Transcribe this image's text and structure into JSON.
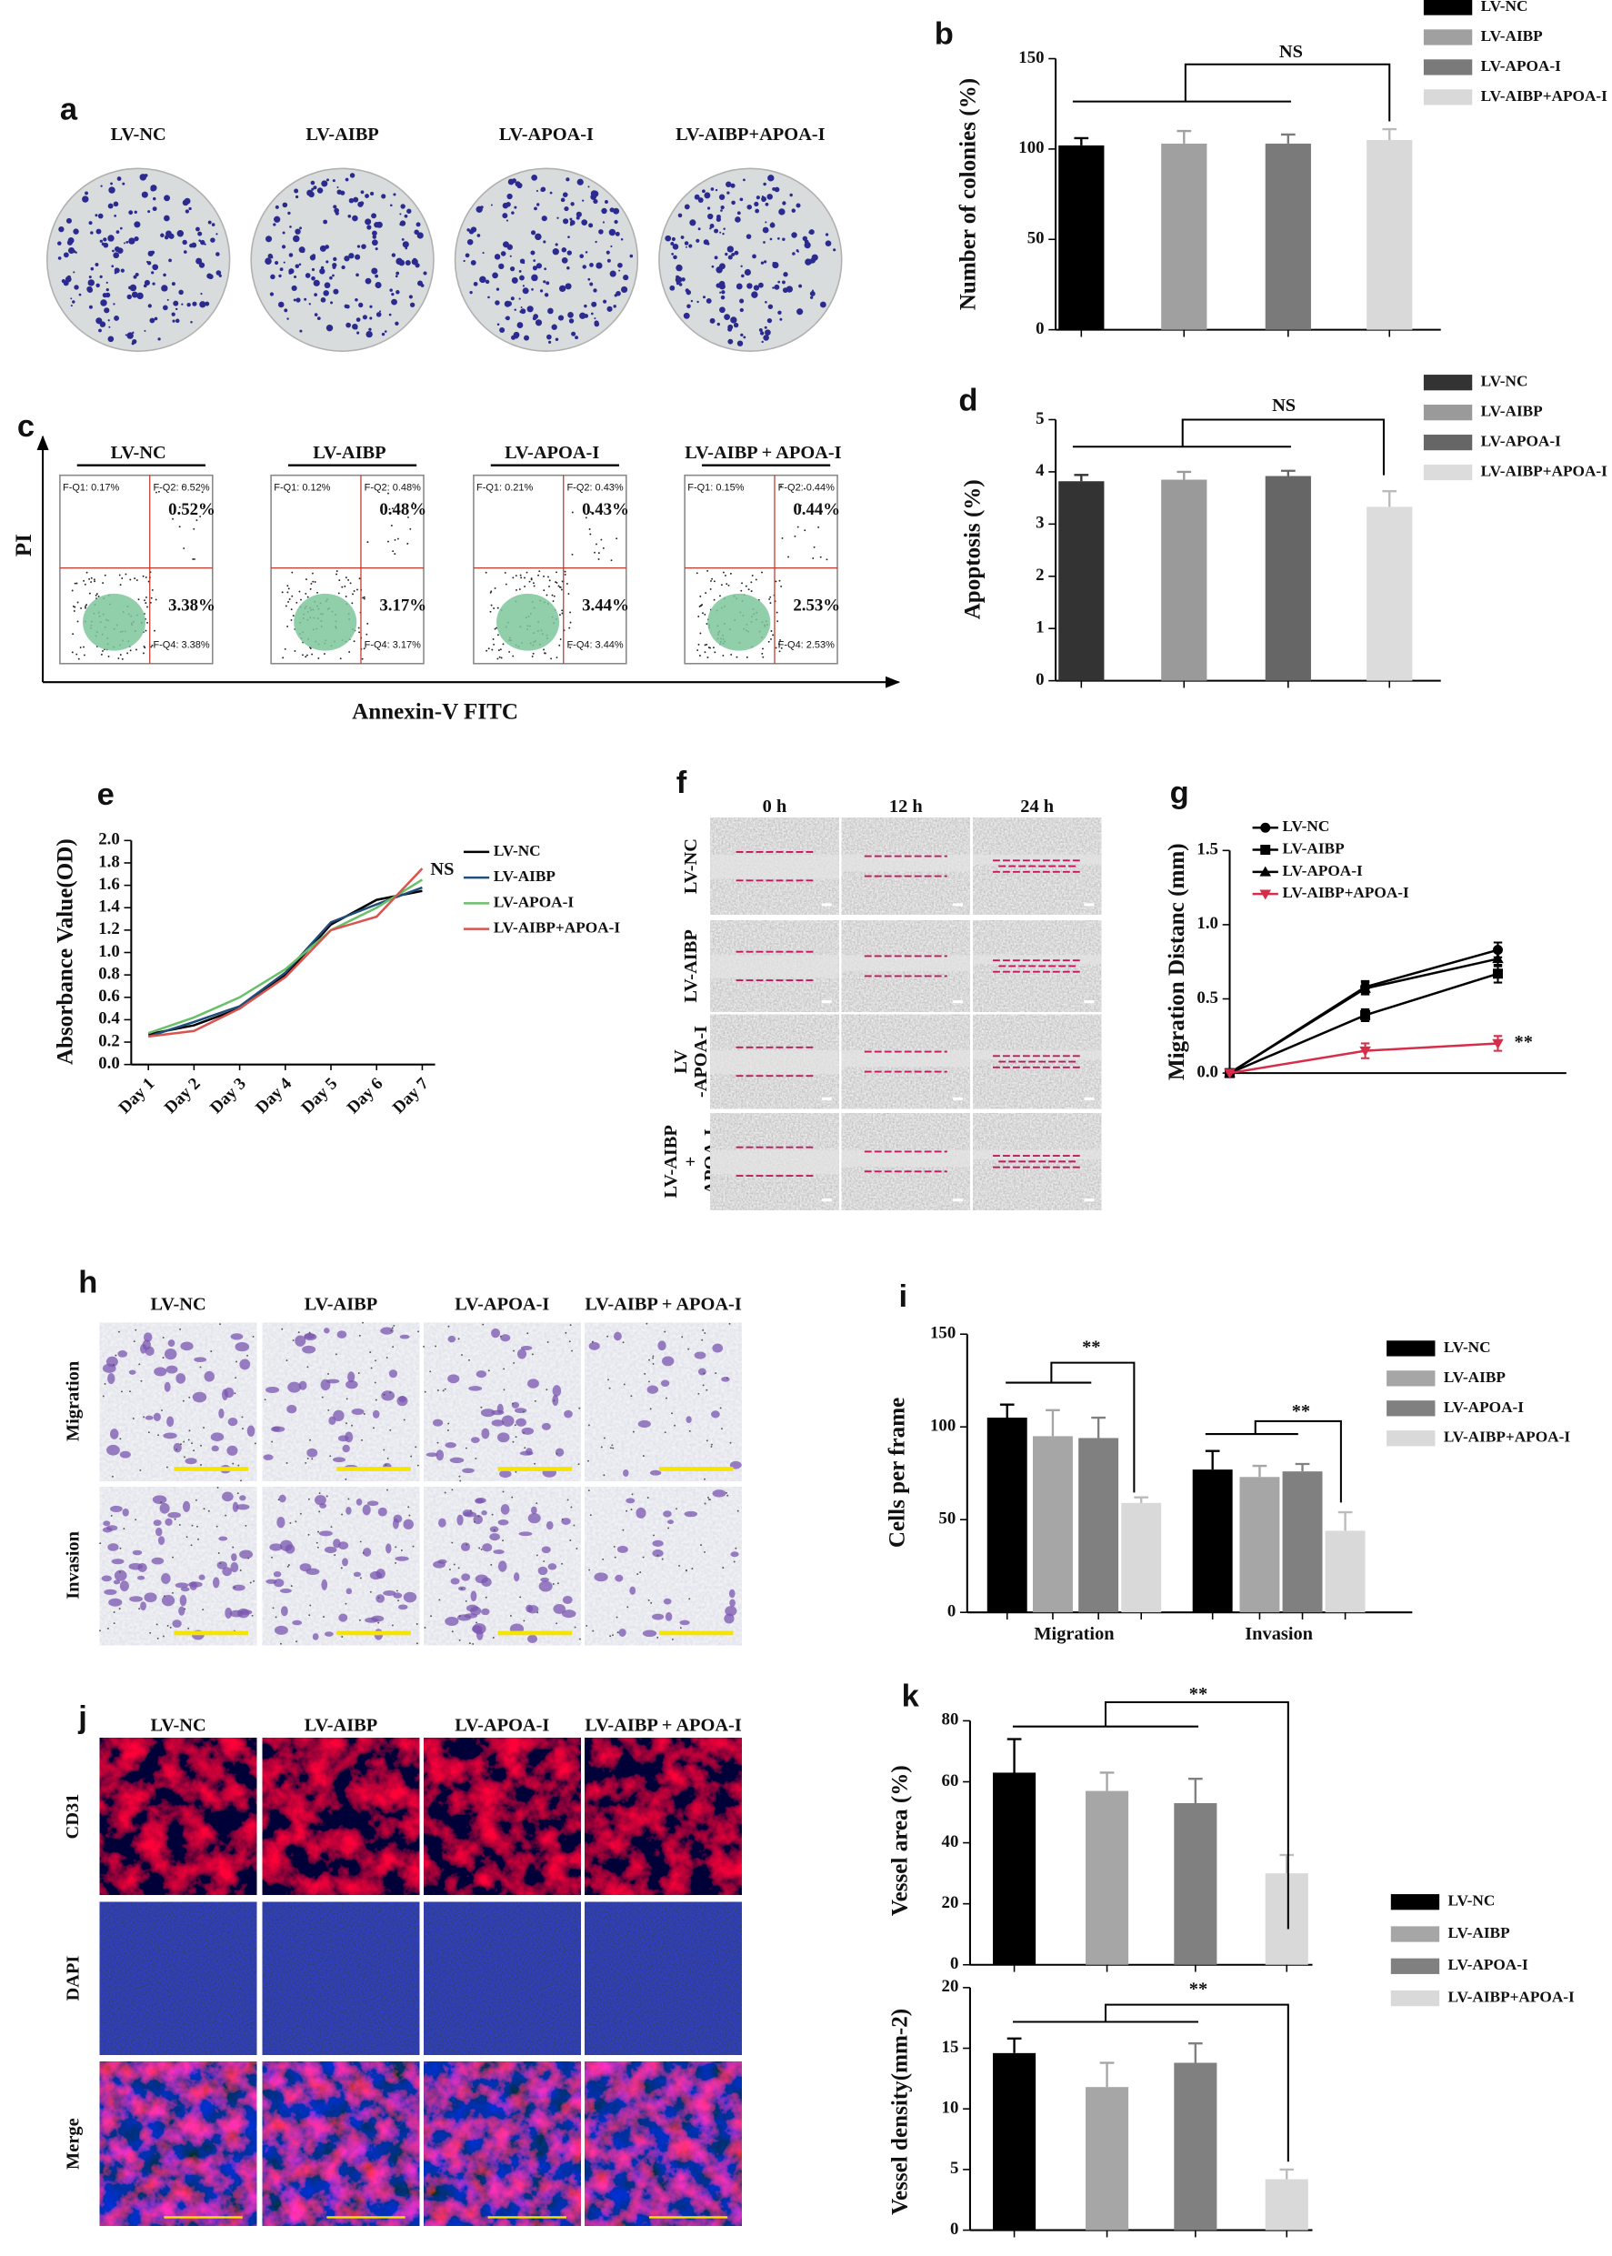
{
  "colony_panel": {
    "label": "a",
    "columns": [
      "LV-NC",
      "LV-AIBP",
      "LV-APOA-I",
      "LV-AIBP+APOA-I"
    ]
  },
  "flow_panel": {
    "label": "c",
    "columns": [
      "LV-NC",
      "LV-AIBP",
      "LV-APOA-I",
      "LV-AIBP + APOA-I"
    ],
    "y_label": "PI",
    "x_label": "Annexin-V FITC",
    "plots": [
      {
        "q1": "F-Q1: 0.17%",
        "q2": "F-Q2: 0.52%",
        "q2_big": "0.52%",
        "q4_big": "3.38%",
        "q4": "F-Q4: 3.38%"
      },
      {
        "q1": "F-Q1: 0.12%",
        "q2": "F-Q2: 0.48%",
        "q2_big": "0.48%",
        "q4_big": "3.17%",
        "q4": "F-Q4: 3.17%"
      },
      {
        "q1": "F-Q1: 0.21%",
        "q2": "F-Q2: 0.43%",
        "q2_big": "0.43%",
        "q4_big": "3.44%",
        "q4": "F-Q4: 3.44%"
      },
      {
        "q1": "F-Q1: 0.15%",
        "q2": "F-Q2: 0.44%",
        "q2_big": "0.44%",
        "q4_big": "2.53%",
        "q4": "F-Q4: 2.53%"
      }
    ]
  },
  "wound_panel": {
    "label": "f",
    "columns": [
      "0 h",
      "12 h",
      "24 h"
    ],
    "rows": [
      [
        "LV-NC"
      ],
      [
        "LV-AIBP"
      ],
      [
        "LV",
        "-APOA-I"
      ],
      [
        "LV-AIBP",
        "+",
        "APOA-I"
      ]
    ]
  },
  "transwell_panel": {
    "label": "h",
    "columns": [
      "LV-NC",
      "LV-AIBP",
      "LV-APOA-I",
      "LV-AIBP + APOA-I"
    ],
    "rows": [
      "Migration",
      "Invasion"
    ]
  },
  "if_panel": {
    "label": "j",
    "columns": [
      "LV-NC",
      "LV-AIBP",
      "LV-APOA-I",
      "LV-AIBP + APOA-I"
    ],
    "rows": [
      "CD31",
      "DAPI",
      "Merge"
    ]
  },
  "chart_data": [
    {
      "type": "bar",
      "label": "b",
      "ylabel": "Number of colonies (%)",
      "categories": [
        null
      ],
      "ylim": [
        0,
        150
      ],
      "yticks": [
        0,
        50,
        100,
        150
      ],
      "legend": true,
      "annotations": [
        "NS"
      ],
      "series": [
        {
          "name": "LV-NC",
          "color": "#000000",
          "values": [
            102
          ],
          "errors": [
            4
          ]
        },
        {
          "name": "LV-AIBP",
          "color": "#a0a0a0",
          "values": [
            103
          ],
          "errors": [
            7
          ]
        },
        {
          "name": "LV-APOA-I",
          "color": "#7a7a7a",
          "values": [
            103
          ],
          "errors": [
            5
          ]
        },
        {
          "name": "LV-AIBP+APOA-I",
          "color": "#d9d9d9",
          "values": [
            105
          ],
          "errors": [
            6
          ]
        }
      ]
    },
    {
      "type": "bar",
      "label": "d",
      "ylabel": "Apoptosis  (%)",
      "categories": [
        null
      ],
      "ylim": [
        0,
        5
      ],
      "yticks": [
        0,
        1,
        2,
        3,
        4,
        5
      ],
      "legend": true,
      "annotations": [
        "NS"
      ],
      "series": [
        {
          "name": "LV-NC",
          "color": "#333333",
          "values": [
            3.82
          ],
          "errors": [
            0.12
          ]
        },
        {
          "name": "LV-AIBP",
          "color": "#9a9a9a",
          "values": [
            3.85
          ],
          "errors": [
            0.15
          ]
        },
        {
          "name": "LV-APOA-I",
          "color": "#666666",
          "values": [
            3.92
          ],
          "errors": [
            0.1
          ]
        },
        {
          "name": "LV-AIBP+APOA-I",
          "color": "#dcdcdc",
          "values": [
            3.33
          ],
          "errors": [
            0.3
          ]
        }
      ]
    },
    {
      "type": "line",
      "label": "e",
      "ylabel": "Absorbance Value(OD)",
      "categories": [
        "Day 1",
        "Day 2",
        "Day 3",
        "Day 4",
        "Day 5",
        "Day 6",
        "Day 7"
      ],
      "ylim": [
        0,
        2.0
      ],
      "yticks": [
        {
          "value": 0,
          "label": "0.0"
        },
        0.2,
        0.4,
        0.6,
        0.8,
        {
          "value": 1,
          "label": "1.0"
        },
        1.2,
        1.4,
        1.6,
        1.8,
        {
          "value": 2,
          "label": "2.0"
        }
      ],
      "legend": true,
      "annotations": [
        "NS"
      ],
      "series": [
        {
          "name": "LV-NC",
          "color": "#000000",
          "values": [
            0.27,
            0.35,
            0.5,
            0.8,
            1.25,
            1.47,
            1.55
          ]
        },
        {
          "name": "LV-AIBP",
          "color": "#1f4e79",
          "values": [
            0.25,
            0.38,
            0.52,
            0.82,
            1.27,
            1.43,
            1.58
          ]
        },
        {
          "name": "LV-APOA-I",
          "color": "#6abf69",
          "values": [
            0.28,
            0.42,
            0.6,
            0.85,
            1.2,
            1.4,
            1.65
          ]
        },
        {
          "name": "LV-AIBP+APOA-I",
          "color": "#d9534f",
          "values": [
            0.25,
            0.3,
            0.5,
            0.78,
            1.2,
            1.32,
            1.75
          ]
        }
      ]
    },
    {
      "type": "line",
      "label": "g",
      "ylabel": "Migration Distanc (mm)",
      "categories": [
        null,
        null,
        null
      ],
      "ylim": [
        0,
        1.5
      ],
      "yticks": [
        {
          "value": 0,
          "label": "0.0"
        },
        0.5,
        {
          "value": 1,
          "label": "1.0"
        },
        1.5
      ],
      "legend": true,
      "annotations": [
        "**"
      ],
      "series": [
        {
          "name": "LV-NC",
          "color": "#000000",
          "marker": "circle",
          "values": [
            0,
            0.58,
            0.83
          ],
          "errors": [
            0,
            0.04,
            0.05
          ]
        },
        {
          "name": "LV-AIBP",
          "color": "#000000",
          "marker": "square",
          "values": [
            0,
            0.39,
            0.67
          ],
          "errors": [
            0,
            0.04,
            0.06
          ]
        },
        {
          "name": "LV-APOA-I",
          "color": "#000000",
          "marker": "triangle",
          "values": [
            0,
            0.57,
            0.77
          ],
          "errors": [
            0,
            0.04,
            0.05
          ]
        },
        {
          "name": "LV-AIBP+APOA-I",
          "color": "#d62d4a",
          "marker": "triangle-down",
          "values": [
            0,
            0.15,
            0.2
          ],
          "errors": [
            0,
            0.05,
            0.05
          ]
        }
      ]
    },
    {
      "type": "bar",
      "label": "i",
      "ylabel": "Cells  per frame",
      "categories": [
        "Migration",
        "Invasion"
      ],
      "ylim": [
        0,
        150
      ],
      "yticks": [
        0,
        50,
        100,
        150
      ],
      "legend": true,
      "annotations": [
        "**",
        "**"
      ],
      "series": [
        {
          "name": "LV-NC",
          "color": "#000000",
          "values": [
            105,
            77
          ],
          "errors": [
            7,
            10
          ]
        },
        {
          "name": "LV-AIBP",
          "color": "#a6a6a6",
          "values": [
            95,
            73
          ],
          "errors": [
            14,
            6
          ]
        },
        {
          "name": "LV-APOA-I",
          "color": "#808080",
          "values": [
            94,
            76
          ],
          "errors": [
            11,
            4
          ]
        },
        {
          "name": "LV-AIBP+APOA-I",
          "color": "#d9d9d9",
          "values": [
            59,
            44
          ],
          "errors": [
            3,
            10
          ]
        }
      ]
    },
    {
      "type": "bar",
      "label": "k",
      "ylabel": "Vessel area (%)",
      "categories": [
        null
      ],
      "ylim": [
        0,
        80
      ],
      "yticks": [
        0,
        20,
        40,
        60,
        80
      ],
      "legend": true,
      "annotations": [
        "**"
      ],
      "series": [
        {
          "name": "LV-NC",
          "color": "#000000",
          "values": [
            63
          ],
          "errors": [
            11
          ]
        },
        {
          "name": "LV-AIBP",
          "color": "#a6a6a6",
          "values": [
            57
          ],
          "errors": [
            6
          ]
        },
        {
          "name": "LV-APOA-I",
          "color": "#808080",
          "values": [
            53
          ],
          "errors": [
            8
          ]
        },
        {
          "name": "LV-AIBP+APOA-I",
          "color": "#d9d9d9",
          "values": [
            30
          ],
          "errors": [
            6
          ]
        }
      ]
    },
    {
      "type": "bar",
      "ylabel": "Vessel density(mm-2)",
      "categories": [
        null
      ],
      "ylim": [
        0,
        20
      ],
      "yticks": [
        0,
        5,
        10,
        15,
        20
      ],
      "legend": false,
      "annotations": [
        "**"
      ],
      "series": [
        {
          "color": "#000000",
          "values": [
            14.6
          ],
          "errors": [
            1.2
          ]
        },
        {
          "color": "#a6a6a6",
          "values": [
            11.8
          ],
          "errors": [
            2
          ]
        },
        {
          "color": "#808080",
          "values": [
            13.8
          ],
          "errors": [
            1.6
          ]
        },
        {
          "color": "#d9d9d9",
          "values": [
            4.2
          ],
          "errors": [
            0.8
          ]
        }
      ]
    }
  ]
}
